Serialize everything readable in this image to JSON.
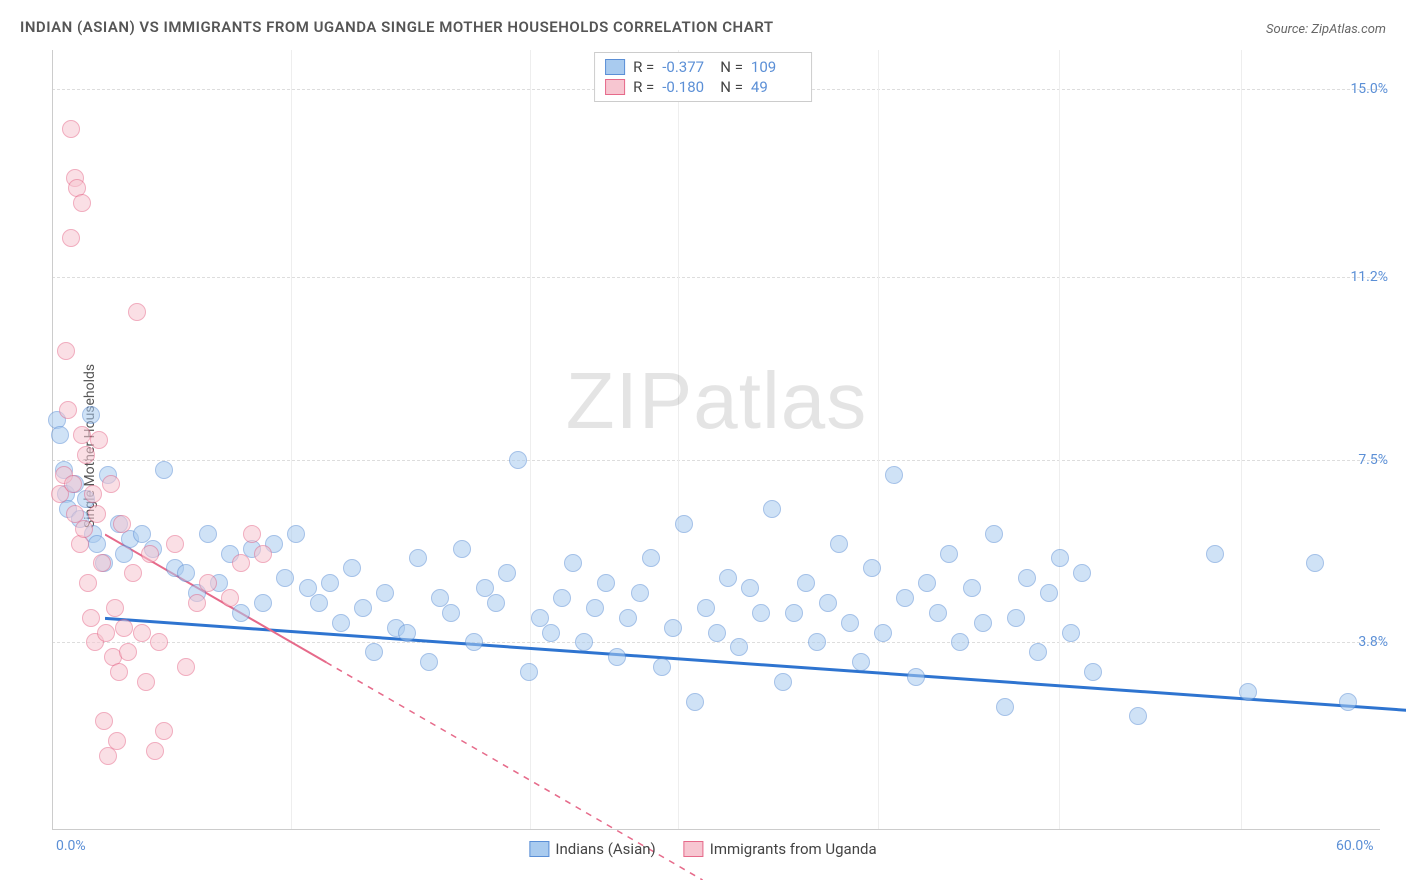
{
  "title": "INDIAN (ASIAN) VS IMMIGRANTS FROM UGANDA SINGLE MOTHER HOUSEHOLDS CORRELATION CHART",
  "source": "Source: ZipAtlas.com",
  "watermark_a": "ZIP",
  "watermark_b": "atlas",
  "y_axis_label": "Single Mother Households",
  "chart": {
    "type": "scatter",
    "background_color": "#ffffff",
    "grid_color": "#dddddd",
    "xlim": [
      0,
      60
    ],
    "ylim": [
      0,
      15.8
    ],
    "x_ticks": [
      0,
      60
    ],
    "x_tick_labels": [
      "0.0%",
      "60.0%"
    ],
    "y_ticks": [
      3.8,
      7.5,
      11.2,
      15.0
    ],
    "y_tick_labels": [
      "3.8%",
      "7.5%",
      "11.2%",
      "15.0%"
    ],
    "vgrid_positions": [
      10.8,
      21.6,
      28.3,
      37.3,
      45.5,
      53.7
    ],
    "point_radius": 9,
    "point_stroke_width": 1.2,
    "series": [
      {
        "name": "Indians (Asian)",
        "color_fill": "#a9cbef",
        "color_stroke": "#5b8fd6",
        "fill_opacity": 0.55,
        "R": "-0.377",
        "N": "109",
        "trend": {
          "x1": 0,
          "y1": 5.3,
          "x2": 60,
          "y2": 3.4,
          "color": "#2e74d0",
          "width": 3,
          "dash": ""
        },
        "points": [
          [
            0.2,
            8.3
          ],
          [
            0.3,
            8.0
          ],
          [
            0.5,
            7.3
          ],
          [
            0.6,
            6.8
          ],
          [
            0.7,
            6.5
          ],
          [
            1.0,
            7.0
          ],
          [
            1.2,
            6.3
          ],
          [
            1.5,
            6.7
          ],
          [
            1.7,
            8.4
          ],
          [
            1.8,
            6.0
          ],
          [
            2.0,
            5.8
          ],
          [
            2.3,
            5.4
          ],
          [
            2.5,
            7.2
          ],
          [
            3.0,
            6.2
          ],
          [
            3.2,
            5.6
          ],
          [
            3.5,
            5.9
          ],
          [
            4.0,
            6.0
          ],
          [
            4.5,
            5.7
          ],
          [
            5.0,
            7.3
          ],
          [
            5.5,
            5.3
          ],
          [
            6.0,
            5.2
          ],
          [
            6.5,
            4.8
          ],
          [
            7.0,
            6.0
          ],
          [
            7.5,
            5.0
          ],
          [
            8.0,
            5.6
          ],
          [
            8.5,
            4.4
          ],
          [
            9.0,
            5.7
          ],
          [
            9.5,
            4.6
          ],
          [
            10.0,
            5.8
          ],
          [
            10.5,
            5.1
          ],
          [
            11.0,
            6.0
          ],
          [
            11.5,
            4.9
          ],
          [
            12.0,
            4.6
          ],
          [
            12.5,
            5.0
          ],
          [
            13.0,
            4.2
          ],
          [
            13.5,
            5.3
          ],
          [
            14.0,
            4.5
          ],
          [
            14.5,
            3.6
          ],
          [
            15.0,
            4.8
          ],
          [
            15.5,
            4.1
          ],
          [
            16.0,
            4.0
          ],
          [
            16.5,
            5.5
          ],
          [
            17.0,
            3.4
          ],
          [
            17.5,
            4.7
          ],
          [
            18.0,
            4.4
          ],
          [
            18.5,
            5.7
          ],
          [
            19.0,
            3.8
          ],
          [
            19.5,
            4.9
          ],
          [
            20.0,
            4.6
          ],
          [
            20.5,
            5.2
          ],
          [
            21.0,
            7.5
          ],
          [
            21.5,
            3.2
          ],
          [
            22.0,
            4.3
          ],
          [
            22.5,
            4.0
          ],
          [
            23.0,
            4.7
          ],
          [
            23.5,
            5.4
          ],
          [
            24.0,
            3.8
          ],
          [
            24.5,
            4.5
          ],
          [
            25.0,
            5.0
          ],
          [
            25.5,
            3.5
          ],
          [
            26.0,
            4.3
          ],
          [
            26.5,
            4.8
          ],
          [
            27.0,
            5.5
          ],
          [
            27.5,
            3.3
          ],
          [
            28.0,
            4.1
          ],
          [
            28.5,
            6.2
          ],
          [
            29.0,
            2.6
          ],
          [
            29.5,
            4.5
          ],
          [
            30.0,
            4.0
          ],
          [
            30.5,
            5.1
          ],
          [
            31.0,
            3.7
          ],
          [
            31.5,
            4.9
          ],
          [
            32.0,
            4.4
          ],
          [
            32.5,
            6.5
          ],
          [
            33.0,
            3.0
          ],
          [
            33.5,
            4.4
          ],
          [
            34.0,
            5.0
          ],
          [
            34.5,
            3.8
          ],
          [
            35.0,
            4.6
          ],
          [
            35.5,
            5.8
          ],
          [
            36.0,
            4.2
          ],
          [
            36.5,
            3.4
          ],
          [
            37.0,
            5.3
          ],
          [
            37.5,
            4.0
          ],
          [
            38.0,
            7.2
          ],
          [
            38.5,
            4.7
          ],
          [
            39.0,
            3.1
          ],
          [
            39.5,
            5.0
          ],
          [
            40.0,
            4.4
          ],
          [
            40.5,
            5.6
          ],
          [
            41.0,
            3.8
          ],
          [
            41.5,
            4.9
          ],
          [
            42.0,
            4.2
          ],
          [
            42.5,
            6.0
          ],
          [
            43.0,
            2.5
          ],
          [
            43.5,
            4.3
          ],
          [
            44.0,
            5.1
          ],
          [
            44.5,
            3.6
          ],
          [
            45.0,
            4.8
          ],
          [
            45.5,
            5.5
          ],
          [
            46.0,
            4.0
          ],
          [
            46.5,
            5.2
          ],
          [
            47.0,
            3.2
          ],
          [
            49.0,
            2.3
          ],
          [
            52.5,
            5.6
          ],
          [
            54.0,
            2.8
          ],
          [
            57.0,
            5.4
          ],
          [
            58.5,
            2.6
          ]
        ]
      },
      {
        "name": "Immigrants from Uganda",
        "color_fill": "#f7c6d1",
        "color_stroke": "#e66a8a",
        "fill_opacity": 0.55,
        "R": "-0.180",
        "N": "49",
        "trend": {
          "x1": 0,
          "y1": 7.0,
          "x2": 27,
          "y2": 0.0,
          "color": "#e66a8a",
          "width": 2,
          "dash": "",
          "extend_dash_to": 27
        },
        "points": [
          [
            0.3,
            6.8
          ],
          [
            0.5,
            7.2
          ],
          [
            0.6,
            9.7
          ],
          [
            0.7,
            8.5
          ],
          [
            0.8,
            12.0
          ],
          [
            0.8,
            14.2
          ],
          [
            0.9,
            7.0
          ],
          [
            1.0,
            6.4
          ],
          [
            1.0,
            13.2
          ],
          [
            1.1,
            13.0
          ],
          [
            1.2,
            5.8
          ],
          [
            1.3,
            12.7
          ],
          [
            1.3,
            8.0
          ],
          [
            1.4,
            6.1
          ],
          [
            1.5,
            7.6
          ],
          [
            1.6,
            5.0
          ],
          [
            1.7,
            4.3
          ],
          [
            1.8,
            6.8
          ],
          [
            1.9,
            3.8
          ],
          [
            2.0,
            6.4
          ],
          [
            2.1,
            7.9
          ],
          [
            2.2,
            5.4
          ],
          [
            2.3,
            2.2
          ],
          [
            2.4,
            4.0
          ],
          [
            2.5,
            1.5
          ],
          [
            2.6,
            7.0
          ],
          [
            2.7,
            3.5
          ],
          [
            2.8,
            4.5
          ],
          [
            2.9,
            1.8
          ],
          [
            3.0,
            3.2
          ],
          [
            3.1,
            6.2
          ],
          [
            3.2,
            4.1
          ],
          [
            3.4,
            3.6
          ],
          [
            3.6,
            5.2
          ],
          [
            3.8,
            10.5
          ],
          [
            4.0,
            4.0
          ],
          [
            4.2,
            3.0
          ],
          [
            4.4,
            5.6
          ],
          [
            4.6,
            1.6
          ],
          [
            4.8,
            3.8
          ],
          [
            5.0,
            2.0
          ],
          [
            5.5,
            5.8
          ],
          [
            6.0,
            3.3
          ],
          [
            6.5,
            4.6
          ],
          [
            7.0,
            5.0
          ],
          [
            8.0,
            4.7
          ],
          [
            8.5,
            5.4
          ],
          [
            9.0,
            6.0
          ],
          [
            9.5,
            5.6
          ]
        ]
      }
    ]
  },
  "legend_bottom": [
    {
      "label": "Indians (Asian)",
      "fill": "#a9cbef",
      "stroke": "#5b8fd6"
    },
    {
      "label": "Immigrants from Uganda",
      "fill": "#f7c6d1",
      "stroke": "#e66a8a"
    }
  ]
}
